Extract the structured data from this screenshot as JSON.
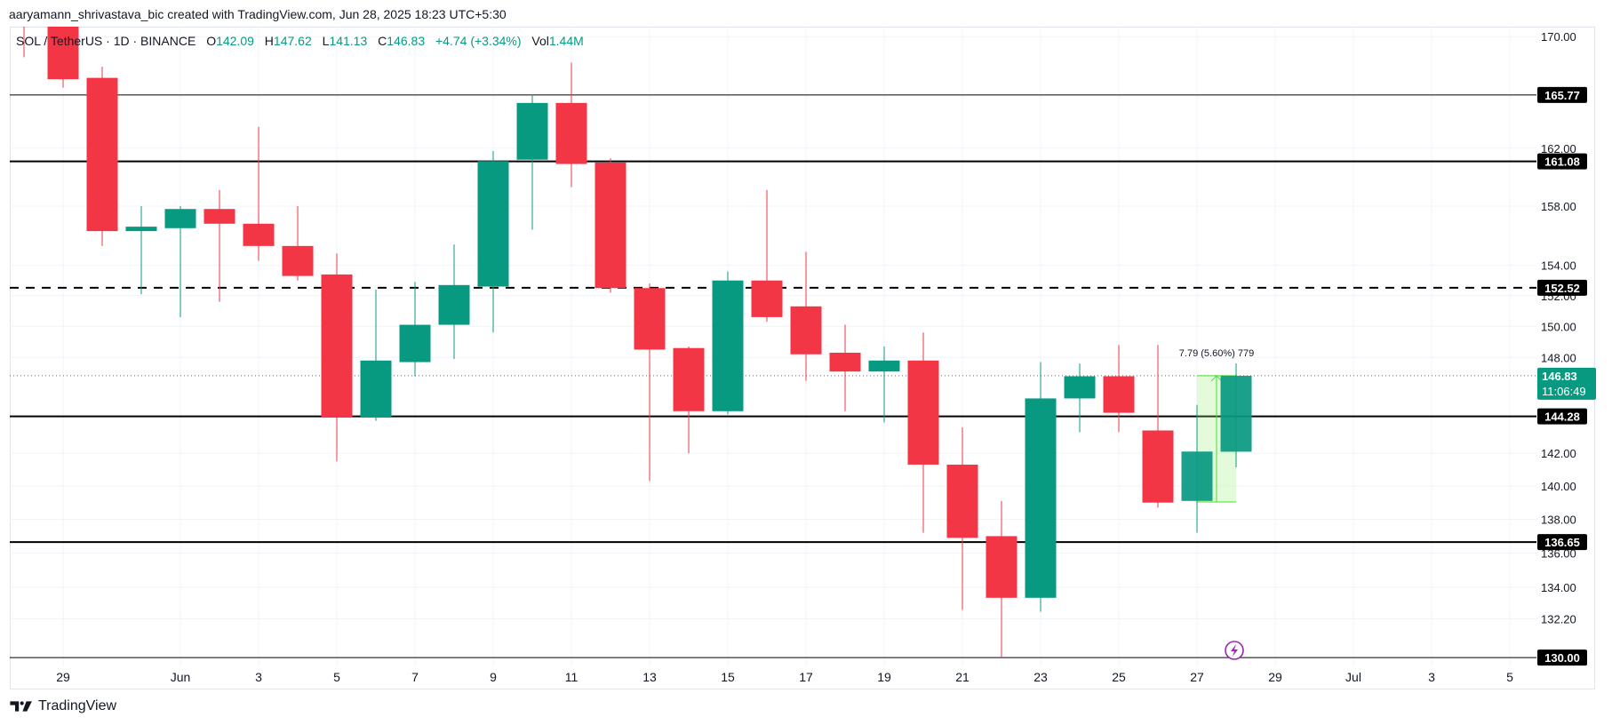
{
  "attribution": "aaryamann_shrivastava_bic created with TradingView.com, Jun 28, 2025 18:23 UTC+5:30",
  "legend": {
    "symbol": "SOL / TetherUS · 1D · BINANCE",
    "open_label": "O",
    "open": "142.09",
    "high_label": "H",
    "high": "147.62",
    "low_label": "L",
    "low": "141.13",
    "close_label": "C",
    "close": "146.83",
    "change": "+4.74 (+3.34%)",
    "vol_label": "Vol",
    "vol": "1.44M"
  },
  "footer": {
    "brand": "TradingView",
    "logo_icon": "tradingview-logo-icon"
  },
  "price_axis": {
    "ticks": [
      "170.00",
      "162.00",
      "158.00",
      "154.00",
      "152.00",
      "150.00",
      "148.00",
      "142.00",
      "140.00",
      "138.00",
      "136.00",
      "134.00",
      "132.20"
    ],
    "current_price": "146.83",
    "countdown": "11:06:49",
    "current_color": "#089981"
  },
  "time_axis": {
    "labels": [
      {
        "label": "29",
        "day": 0
      },
      {
        "label": "Jun",
        "day": 3
      },
      {
        "label": "3",
        "day": 5
      },
      {
        "label": "5",
        "day": 7
      },
      {
        "label": "7",
        "day": 9
      },
      {
        "label": "9",
        "day": 11
      },
      {
        "label": "11",
        "day": 13
      },
      {
        "label": "13",
        "day": 15
      },
      {
        "label": "15",
        "day": 17
      },
      {
        "label": "17",
        "day": 19
      },
      {
        "label": "19",
        "day": 21
      },
      {
        "label": "21",
        "day": 23
      },
      {
        "label": "23",
        "day": 25
      },
      {
        "label": "25",
        "day": 27
      },
      {
        "label": "27",
        "day": 29
      },
      {
        "label": "29",
        "day": 31
      },
      {
        "label": "Jul",
        "day": 33
      },
      {
        "label": "3",
        "day": 35
      },
      {
        "label": "5",
        "day": 37
      }
    ]
  },
  "horizontal_lines": [
    {
      "price": 165.77,
      "label": "165.77",
      "style": "solid",
      "width": 1
    },
    {
      "price": 161.08,
      "label": "161.08",
      "style": "solid",
      "width": 2
    },
    {
      "price": 152.52,
      "label": "152.52",
      "style": "dashed",
      "width": 2
    },
    {
      "price": 144.28,
      "label": "144.28",
      "style": "solid",
      "width": 2
    },
    {
      "price": 136.65,
      "label": "136.65",
      "style": "solid",
      "width": 2
    },
    {
      "price": 130.0,
      "label": "130.00",
      "style": "solid",
      "width": 1
    }
  ],
  "measure_tool": {
    "label": "7.79 (5.60%) 779",
    "from_day": 29,
    "to_day": 30,
    "from_price": 139.04,
    "to_price": 146.83,
    "color": "#4ade30",
    "fill": "rgba(144,238,110,0.25)"
  },
  "colors": {
    "up": "#089981",
    "down": "#f23645",
    "grid": "#f0f3fa",
    "line": "#000000",
    "label_bg": "#000000"
  },
  "chart_data": {
    "type": "candlestick",
    "title": "SOL / TetherUS · 1D · BINANCE",
    "xlabel": "",
    "ylabel": "",
    "scale": "log",
    "ylim": [
      130,
      170
    ],
    "grid": true,
    "categories": [
      "May 28",
      "May 29",
      "May 30",
      "May 31",
      "Jun 1",
      "Jun 2",
      "Jun 3",
      "Jun 4",
      "Jun 5",
      "Jun 6",
      "Jun 7",
      "Jun 8",
      "Jun 9",
      "Jun 10",
      "Jun 11",
      "Jun 12",
      "Jun 13",
      "Jun 14",
      "Jun 15",
      "Jun 16",
      "Jun 17",
      "Jun 18",
      "Jun 19",
      "Jun 20",
      "Jun 21",
      "Jun 22",
      "Jun 23",
      "Jun 24",
      "Jun 25",
      "Jun 26",
      "Jun 27",
      "Jun 28"
    ],
    "candles": [
      {
        "date": "May 28",
        "o": 172.0,
        "h": 173.0,
        "l": 168.5,
        "c": 171.0
      },
      {
        "date": "May 29",
        "o": 171.5,
        "h": 172.5,
        "l": 166.3,
        "c": 166.9
      },
      {
        "date": "May 30",
        "o": 167.0,
        "h": 167.8,
        "l": 155.3,
        "c": 156.3
      },
      {
        "date": "May 31",
        "o": 156.3,
        "h": 158.0,
        "l": 152.1,
        "c": 156.6
      },
      {
        "date": "Jun 1",
        "o": 156.5,
        "h": 158.0,
        "l": 150.6,
        "c": 157.8
      },
      {
        "date": "Jun 2",
        "o": 157.8,
        "h": 159.1,
        "l": 151.6,
        "c": 156.8
      },
      {
        "date": "Jun 3",
        "o": 156.8,
        "h": 163.5,
        "l": 154.3,
        "c": 155.3
      },
      {
        "date": "Jun 4",
        "o": 155.3,
        "h": 158.0,
        "l": 153.0,
        "c": 153.3
      },
      {
        "date": "Jun 5",
        "o": 153.4,
        "h": 154.8,
        "l": 141.5,
        "c": 144.2
      },
      {
        "date": "Jun 6",
        "o": 144.2,
        "h": 152.4,
        "l": 144.0,
        "c": 147.8
      },
      {
        "date": "Jun 7",
        "o": 147.7,
        "h": 152.9,
        "l": 146.8,
        "c": 150.1
      },
      {
        "date": "Jun 8",
        "o": 150.1,
        "h": 155.4,
        "l": 147.9,
        "c": 152.7
      },
      {
        "date": "Jun 9",
        "o": 152.6,
        "h": 161.8,
        "l": 149.6,
        "c": 161.1
      },
      {
        "date": "Jun 10",
        "o": 161.2,
        "h": 165.8,
        "l": 156.4,
        "c": 165.2
      },
      {
        "date": "Jun 11",
        "o": 165.2,
        "h": 168.1,
        "l": 159.3,
        "c": 160.9
      },
      {
        "date": "Jun 12",
        "o": 161.0,
        "h": 161.3,
        "l": 152.2,
        "c": 152.5
      },
      {
        "date": "Jun 13",
        "o": 152.5,
        "h": 152.8,
        "l": 140.3,
        "c": 148.5
      },
      {
        "date": "Jun 14",
        "o": 148.6,
        "h": 148.7,
        "l": 142.0,
        "c": 144.6
      },
      {
        "date": "Jun 15",
        "o": 144.6,
        "h": 153.6,
        "l": 144.4,
        "c": 153.0
      },
      {
        "date": "Jun 16",
        "o": 153.0,
        "h": 159.1,
        "l": 150.3,
        "c": 150.6
      },
      {
        "date": "Jun 17",
        "o": 151.3,
        "h": 154.9,
        "l": 146.5,
        "c": 148.2
      },
      {
        "date": "Jun 18",
        "o": 148.3,
        "h": 150.1,
        "l": 144.6,
        "c": 147.1
      },
      {
        "date": "Jun 19",
        "o": 147.1,
        "h": 148.7,
        "l": 143.9,
        "c": 147.8
      },
      {
        "date": "Jun 20",
        "o": 147.8,
        "h": 149.6,
        "l": 137.2,
        "c": 141.3
      },
      {
        "date": "Jun 21",
        "o": 141.3,
        "h": 143.6,
        "l": 132.7,
        "c": 136.9
      },
      {
        "date": "Jun 22",
        "o": 137.0,
        "h": 139.1,
        "l": 130.0,
        "c": 133.4
      },
      {
        "date": "Jun 23",
        "o": 133.4,
        "h": 147.7,
        "l": 132.6,
        "c": 145.4
      },
      {
        "date": "Jun 24",
        "o": 145.4,
        "h": 147.6,
        "l": 143.3,
        "c": 146.8
      },
      {
        "date": "Jun 25",
        "o": 146.8,
        "h": 148.8,
        "l": 143.3,
        "c": 144.5
      },
      {
        "date": "Jun 26",
        "o": 143.4,
        "h": 148.8,
        "l": 138.7,
        "c": 139.0
      },
      {
        "date": "Jun 27",
        "o": 139.1,
        "h": 145.0,
        "l": 137.2,
        "c": 142.1
      },
      {
        "date": "Jun 28",
        "o": 142.09,
        "h": 147.62,
        "l": 141.13,
        "c": 146.83
      }
    ],
    "annotations": [
      "Horizontal lines at 165.77, 161.08, 152.52 (dashed), 144.28, 136.65, 130.00",
      "Price range measure Jun 27–Jun 28: 7.79 (5.60%) 779",
      "Current price 146.83, bar countdown 11:06:49"
    ]
  }
}
